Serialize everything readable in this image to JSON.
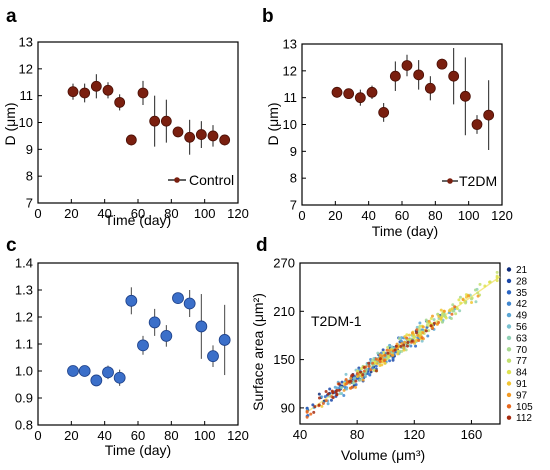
{
  "chart_data": [
    {
      "panel": "a",
      "type": "scatter",
      "xlabel": "Time (day)",
      "ylabel": "D (μm)",
      "xlim": [
        0,
        120
      ],
      "ylim": [
        7,
        13
      ],
      "xticks": [
        0,
        20,
        40,
        60,
        80,
        100,
        120
      ],
      "yticks": [
        7,
        8,
        9,
        10,
        11,
        12,
        13
      ],
      "marker_color": "#7a1f0f",
      "legend": "Control",
      "legend_position": "bottom-right",
      "series": [
        {
          "name": "Control",
          "x": [
            21,
            28,
            35,
            42,
            49,
            56,
            63,
            70,
            77,
            84,
            91,
            98,
            105,
            112
          ],
          "y": [
            11.15,
            11.1,
            11.35,
            11.2,
            10.75,
            9.35,
            11.1,
            10.05,
            10.05,
            9.65,
            9.45,
            9.55,
            9.5,
            9.35
          ],
          "err": [
            0.3,
            0.35,
            0.45,
            0.3,
            0.3,
            0.2,
            0.45,
            0.95,
            0.8,
            0.2,
            0.65,
            0.5,
            0.4,
            0.2
          ]
        }
      ]
    },
    {
      "panel": "b",
      "type": "scatter",
      "xlabel": "Time (day)",
      "ylabel": "D (μm)",
      "xlim": [
        0,
        120
      ],
      "ylim": [
        7,
        13
      ],
      "xticks": [
        0,
        20,
        40,
        60,
        80,
        100,
        120
      ],
      "yticks": [
        7,
        8,
        9,
        10,
        11,
        12,
        13
      ],
      "marker_color": "#7a1f0f",
      "legend": "T2DM",
      "legend_position": "bottom-right",
      "series": [
        {
          "name": "T2DM",
          "x": [
            21,
            28,
            35,
            42,
            49,
            56,
            63,
            70,
            77,
            84,
            91,
            98,
            105,
            112
          ],
          "y": [
            11.2,
            11.15,
            11.0,
            11.2,
            10.45,
            11.8,
            12.2,
            11.85,
            11.35,
            12.25,
            11.8,
            11.05,
            10.0,
            10.35
          ],
          "err": [
            0.2,
            0.15,
            0.3,
            0.25,
            0.35,
            0.55,
            0.4,
            0.55,
            0.45,
            0.2,
            1.05,
            1.45,
            0.35,
            1.3
          ]
        }
      ]
    },
    {
      "panel": "c",
      "type": "scatter",
      "xlabel": "Time (day)",
      "ylabel": "",
      "xlim": [
        0,
        120
      ],
      "ylim": [
        0.8,
        1.4
      ],
      "xticks": [
        0,
        20,
        40,
        60,
        80,
        100,
        120
      ],
      "yticks": [
        0.8,
        0.9,
        1.0,
        1.1,
        1.2,
        1.3,
        1.4
      ],
      "marker_color": "#3b6fc9",
      "series": [
        {
          "name": "",
          "x": [
            21,
            28,
            35,
            42,
            49,
            56,
            63,
            70,
            77,
            84,
            91,
            98,
            105,
            112
          ],
          "y": [
            1.0,
            1.0,
            0.965,
            0.995,
            0.975,
            1.26,
            1.095,
            1.18,
            1.13,
            1.27,
            1.25,
            1.165,
            1.055,
            1.115
          ],
          "err": [
            0.015,
            0.015,
            0.02,
            0.025,
            0.03,
            0.05,
            0.035,
            0.05,
            0.04,
            0.02,
            0.05,
            0.12,
            0.04,
            0.13
          ]
        }
      ]
    },
    {
      "panel": "d",
      "type": "scatter",
      "title": "T2DM-1",
      "xlabel": "Volume (μm³)",
      "ylabel": "Surface area (μm²)",
      "xlim": [
        40,
        180
      ],
      "ylim": [
        70,
        270
      ],
      "xticks": [
        40,
        80,
        120,
        160
      ],
      "yticks": [
        90,
        150,
        210,
        270
      ],
      "legend_position": "right",
      "trend": {
        "x0": 45,
        "y0": 85,
        "x1": 180,
        "y1": 253
      },
      "series": [
        {
          "name": "21",
          "color": "#0d2b7a",
          "center": [
            85,
            137
          ],
          "spread": 22
        },
        {
          "name": "28",
          "color": "#1a47a8",
          "center": [
            88,
            140
          ],
          "spread": 22
        },
        {
          "name": "35",
          "color": "#2a65c4",
          "center": [
            92,
            145
          ],
          "spread": 22
        },
        {
          "name": "42",
          "color": "#3f86cf",
          "center": [
            95,
            148
          ],
          "spread": 22
        },
        {
          "name": "49",
          "color": "#5aa6d4",
          "center": [
            98,
            152
          ],
          "spread": 24
        },
        {
          "name": "56",
          "color": "#78c0cf",
          "center": [
            110,
            167
          ],
          "spread": 26
        },
        {
          "name": "63",
          "color": "#8fd0b4",
          "center": [
            108,
            164
          ],
          "spread": 26
        },
        {
          "name": "70",
          "color": "#a7d98f",
          "center": [
            112,
            170
          ],
          "spread": 27
        },
        {
          "name": "77",
          "color": "#c3e06f",
          "center": [
            122,
            182
          ],
          "spread": 28
        },
        {
          "name": "84",
          "color": "#dfe34f",
          "center": [
            130,
            192
          ],
          "spread": 30
        },
        {
          "name": "91",
          "color": "#f2c531",
          "center": [
            118,
            177
          ],
          "spread": 27
        },
        {
          "name": "97",
          "color": "#f39a24",
          "center": [
            105,
            160
          ],
          "spread": 26
        },
        {
          "name": "105",
          "color": "#e7661c",
          "center": [
            95,
            148
          ],
          "spread": 24
        },
        {
          "name": "112",
          "color": "#a62a0f",
          "center": [
            85,
            136
          ],
          "spread": 22
        }
      ]
    }
  ]
}
